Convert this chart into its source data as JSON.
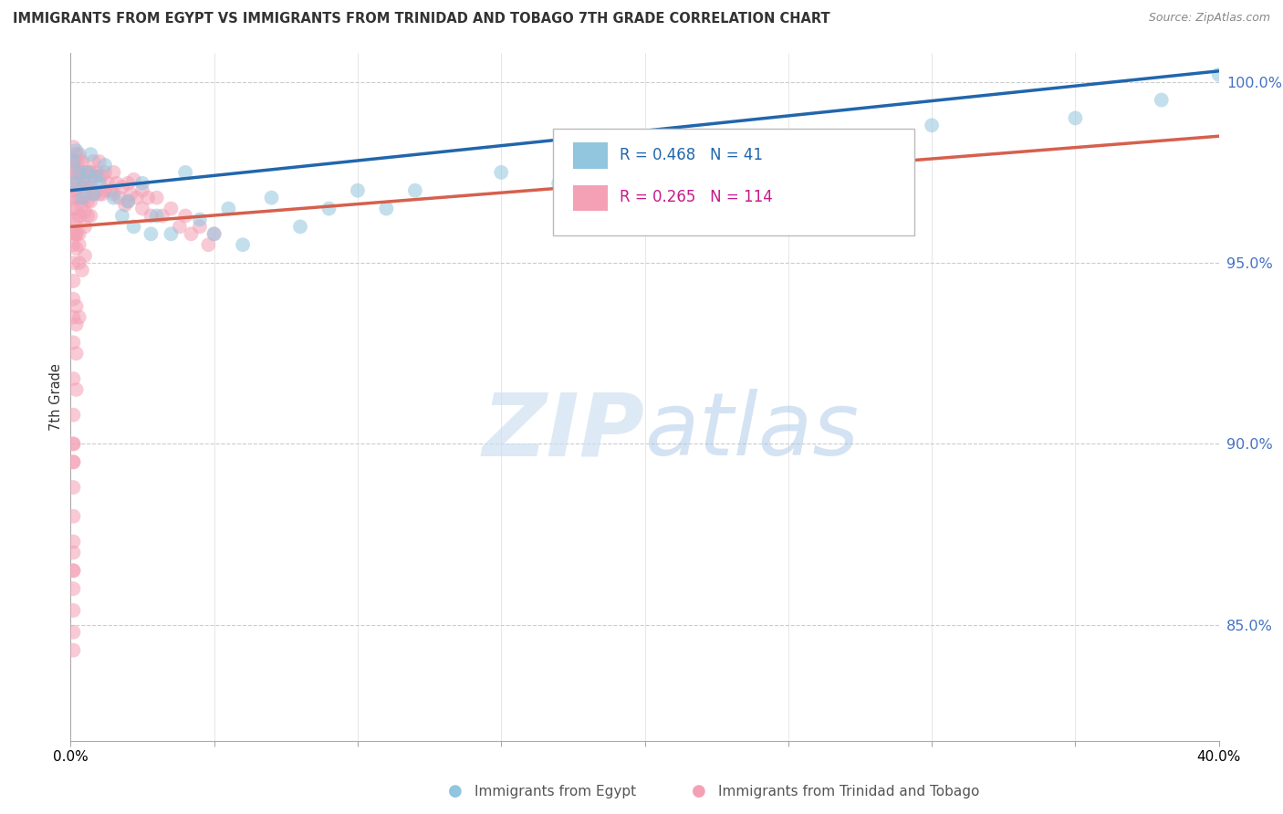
{
  "title": "IMMIGRANTS FROM EGYPT VS IMMIGRANTS FROM TRINIDAD AND TOBAGO 7TH GRADE CORRELATION CHART",
  "source": "Source: ZipAtlas.com",
  "ylabel": "7th Grade",
  "xmin": 0.0,
  "xmax": 0.4,
  "ymin": 0.818,
  "ymax": 1.008,
  "yticks": [
    0.85,
    0.9,
    0.95,
    1.0
  ],
  "ytick_labels": [
    "85.0%",
    "90.0%",
    "95.0%",
    "100.0%"
  ],
  "legend_egypt_r": "0.468",
  "legend_egypt_n": "41",
  "legend_tt_r": "0.265",
  "legend_tt_n": "114",
  "egypt_color": "#92c5de",
  "tt_color": "#f4a0b5",
  "egypt_line_color": "#2166ac",
  "tt_line_color": "#d6604d",
  "egypt_label": "Immigrants from Egypt",
  "tt_label": "Immigrants from Trinidad and Tobago",
  "egypt_x": [
    0.001,
    0.001,
    0.002,
    0.003,
    0.004,
    0.005,
    0.006,
    0.007,
    0.008,
    0.009,
    0.01,
    0.012,
    0.015,
    0.018,
    0.02,
    0.022,
    0.025,
    0.028,
    0.03,
    0.035,
    0.04,
    0.045,
    0.05,
    0.055,
    0.06,
    0.07,
    0.08,
    0.09,
    0.1,
    0.11,
    0.12,
    0.15,
    0.17,
    0.2,
    0.22,
    0.25,
    0.28,
    0.3,
    0.35,
    0.38,
    0.4
  ],
  "egypt_y": [
    0.978,
    0.972,
    0.981,
    0.975,
    0.968,
    0.972,
    0.975,
    0.98,
    0.969,
    0.974,
    0.972,
    0.977,
    0.968,
    0.963,
    0.967,
    0.96,
    0.972,
    0.958,
    0.963,
    0.958,
    0.975,
    0.962,
    0.958,
    0.965,
    0.955,
    0.968,
    0.96,
    0.965,
    0.97,
    0.965,
    0.97,
    0.975,
    0.972,
    0.978,
    0.98,
    0.982,
    0.985,
    0.988,
    0.99,
    0.995,
    1.002
  ],
  "tt_x": [
    0.001,
    0.001,
    0.001,
    0.001,
    0.001,
    0.001,
    0.001,
    0.001,
    0.001,
    0.001,
    0.002,
    0.002,
    0.002,
    0.002,
    0.002,
    0.002,
    0.002,
    0.002,
    0.003,
    0.003,
    0.003,
    0.003,
    0.003,
    0.003,
    0.003,
    0.004,
    0.004,
    0.004,
    0.004,
    0.005,
    0.005,
    0.005,
    0.005,
    0.005,
    0.006,
    0.006,
    0.006,
    0.006,
    0.007,
    0.007,
    0.007,
    0.007,
    0.008,
    0.008,
    0.008,
    0.009,
    0.009,
    0.01,
    0.01,
    0.01,
    0.011,
    0.011,
    0.012,
    0.012,
    0.013,
    0.014,
    0.015,
    0.015,
    0.016,
    0.017,
    0.018,
    0.019,
    0.02,
    0.02,
    0.021,
    0.022,
    0.023,
    0.025,
    0.025,
    0.027,
    0.028,
    0.03,
    0.032,
    0.035,
    0.038,
    0.04,
    0.042,
    0.045,
    0.048,
    0.05,
    0.001,
    0.001,
    0.001,
    0.001,
    0.002,
    0.002,
    0.003,
    0.003,
    0.004,
    0.005,
    0.001,
    0.001,
    0.002,
    0.002,
    0.003,
    0.001,
    0.002,
    0.001,
    0.002,
    0.001,
    0.001,
    0.001,
    0.001,
    0.001,
    0.001,
    0.001,
    0.001,
    0.001,
    0.001,
    0.001,
    0.001,
    0.001,
    0.001,
    0.001
  ],
  "tt_y": [
    0.982,
    0.978,
    0.975,
    0.972,
    0.968,
    0.965,
    0.962,
    0.978,
    0.975,
    0.97,
    0.98,
    0.978,
    0.975,
    0.972,
    0.968,
    0.965,
    0.962,
    0.958,
    0.98,
    0.978,
    0.975,
    0.972,
    0.968,
    0.963,
    0.958,
    0.978,
    0.975,
    0.971,
    0.966,
    0.975,
    0.972,
    0.968,
    0.964,
    0.96,
    0.975,
    0.971,
    0.967,
    0.963,
    0.975,
    0.971,
    0.967,
    0.963,
    0.978,
    0.974,
    0.969,
    0.975,
    0.97,
    0.978,
    0.974,
    0.969,
    0.974,
    0.969,
    0.975,
    0.97,
    0.972,
    0.97,
    0.975,
    0.969,
    0.972,
    0.968,
    0.971,
    0.966,
    0.972,
    0.967,
    0.969,
    0.973,
    0.968,
    0.97,
    0.965,
    0.968,
    0.963,
    0.968,
    0.963,
    0.965,
    0.96,
    0.963,
    0.958,
    0.96,
    0.955,
    0.958,
    0.958,
    0.955,
    0.95,
    0.945,
    0.958,
    0.954,
    0.955,
    0.95,
    0.948,
    0.952,
    0.94,
    0.935,
    0.938,
    0.933,
    0.935,
    0.928,
    0.925,
    0.918,
    0.915,
    0.908,
    0.9,
    0.895,
    0.888,
    0.88,
    0.873,
    0.865,
    0.86,
    0.854,
    0.848,
    0.843,
    0.9,
    0.895,
    0.87,
    0.865
  ]
}
